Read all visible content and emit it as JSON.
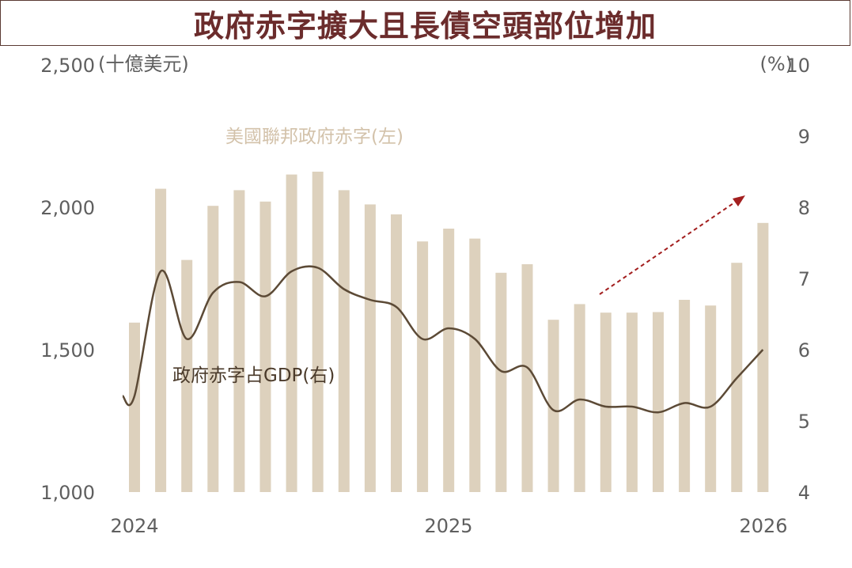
{
  "title": "政府赤字擴大且長債空頭部位增加",
  "colors": {
    "bar": "#ddd1bd",
    "line": "#5c4a36",
    "arrow": "#a31f1f",
    "title": "#6b2c2c"
  },
  "chart_data": {
    "type": "bar+line",
    "x_tick_labels": [
      "2024",
      "2025",
      "2026"
    ],
    "left_axis": {
      "unit_label": "(十億美元)",
      "ticks": [
        "1,000",
        "1,500",
        "2,000",
        "2,500"
      ],
      "ylim": [
        1000,
        2500
      ]
    },
    "right_axis": {
      "unit_label": "(%)",
      "ticks": [
        "4",
        "5",
        "6",
        "7",
        "8",
        "9",
        "10"
      ],
      "ylim": [
        4,
        10
      ]
    },
    "series": [
      {
        "name": "美國聯邦政府赤字(左)",
        "type": "bar",
        "axis": "left",
        "values": [
          1595,
          2065,
          1815,
          2005,
          2060,
          2020,
          2115,
          2125,
          2060,
          2010,
          1975,
          1880,
          1925,
          1890,
          1770,
          1800,
          1605,
          1660,
          1630,
          1630,
          1632,
          1675,
          1655,
          1805,
          1945
        ]
      },
      {
        "name": "政府赤字占GDP(右)",
        "type": "line",
        "axis": "right",
        "values": [
          5.35,
          7.1,
          6.15,
          6.8,
          6.95,
          6.75,
          7.1,
          7.15,
          6.85,
          6.7,
          6.6,
          6.15,
          6.3,
          6.15,
          5.7,
          5.75,
          5.15,
          5.3,
          5.2,
          5.2,
          5.12,
          5.25,
          5.2,
          5.6,
          6.0
        ]
      }
    ]
  }
}
